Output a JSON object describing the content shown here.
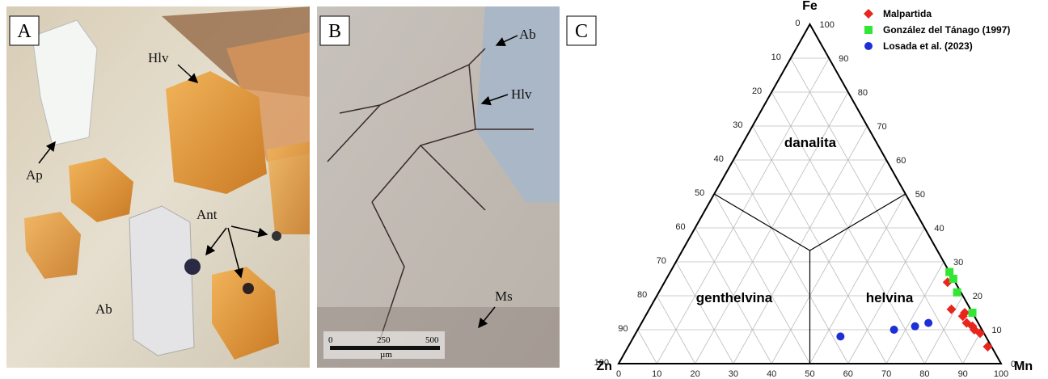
{
  "panels": [
    {
      "letter": "A",
      "labels": [
        "Hlv",
        "Ap",
        "Ant",
        "Ab"
      ]
    },
    {
      "letter": "B",
      "labels": [
        "Ab",
        "Hlv",
        "Ms"
      ],
      "scale": [
        "0",
        "250",
        "500",
        "µm"
      ]
    },
    {
      "letter": "C"
    }
  ],
  "chart_data": {
    "type": "ternary",
    "vertices": {
      "top": "Fe",
      "left": "Zn",
      "right": "Mn"
    },
    "zn_ticks": [
      0,
      10,
      20,
      30,
      40,
      50,
      60,
      70,
      80,
      90,
      100
    ],
    "fe_ticks": [
      0,
      10,
      20,
      30,
      40,
      50,
      60,
      70,
      80,
      90,
      100
    ],
    "mn_ticks": [
      0,
      10,
      20,
      30,
      40,
      50,
      60,
      70,
      80,
      90,
      100
    ],
    "regions": [
      "danalita",
      "genthelvina",
      "helvina"
    ],
    "grid": true,
    "series": [
      {
        "name": "Malpartida",
        "color": "#e8261c",
        "marker": "diamond",
        "fe": [
          24,
          16,
          15,
          14,
          12,
          11,
          10,
          9,
          5
        ],
        "mn": [
          74,
          79,
          83,
          83,
          85,
          87,
          88,
          90,
          94
        ]
      },
      {
        "name": "González del Tánago (1997)",
        "color": "#33e633",
        "marker": "square",
        "fe": [
          27,
          25,
          21,
          15
        ],
        "mn": [
          73,
          75,
          78,
          85
        ]
      },
      {
        "name": "Losada et al. (2023)",
        "color": "#1f2fd6",
        "marker": "circle",
        "fe": [
          8,
          10,
          11,
          12
        ],
        "mn": [
          54,
          67,
          72,
          75
        ]
      }
    ]
  }
}
